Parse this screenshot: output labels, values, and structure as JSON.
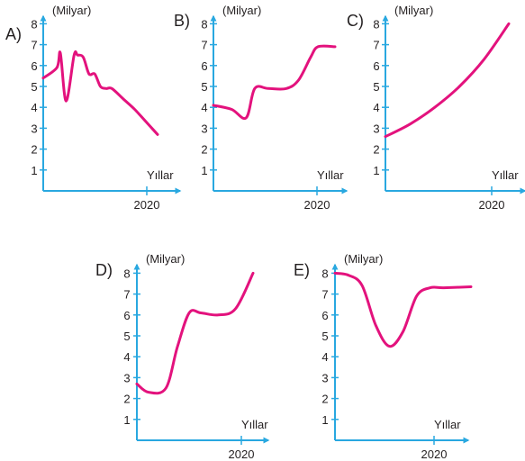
{
  "colors": {
    "axis": "#29a8e0",
    "curve": "#e3127d",
    "text": "#231f20"
  },
  "chart_data": [
    {
      "type": "line",
      "option": "A)",
      "unit_label": "(Milyar)",
      "xlabel": "Yıllar",
      "y_ticks": [
        "1",
        "2",
        "3",
        "4",
        "5",
        "6",
        "7",
        "8"
      ],
      "x_tick": "2020",
      "ylim": [
        0,
        8
      ],
      "series": [
        {
          "x": [
            0,
            0.12,
            0.15,
            0.2,
            0.27,
            0.3,
            0.35,
            0.4,
            0.45,
            0.5,
            0.55,
            0.6,
            0.7,
            0.8,
            0.9,
            1.0
          ],
          "y": [
            5.4,
            5.9,
            6.6,
            4.3,
            6.5,
            6.5,
            6.4,
            5.6,
            5.6,
            5.0,
            4.9,
            4.9,
            4.4,
            3.9,
            3.3,
            2.7
          ]
        }
      ]
    },
    {
      "type": "line",
      "option": "B)",
      "unit_label": "(Milyar)",
      "xlabel": "Yıllar",
      "y_ticks": [
        "1",
        "2",
        "3",
        "4",
        "5",
        "6",
        "7",
        "8"
      ],
      "x_tick": "2020",
      "ylim": [
        0,
        8
      ],
      "series": [
        {
          "x": [
            0,
            0.15,
            0.27,
            0.34,
            0.45,
            0.6,
            0.7,
            0.8,
            0.86,
            1.0
          ],
          "y": [
            4.1,
            3.9,
            3.5,
            4.9,
            4.9,
            4.9,
            5.3,
            6.4,
            6.9,
            6.9
          ]
        }
      ]
    },
    {
      "type": "line",
      "option": "C)",
      "unit_label": "(Milyar)",
      "xlabel": "Yıllar",
      "y_ticks": [
        "1",
        "2",
        "3",
        "4",
        "5",
        "6",
        "7",
        "8"
      ],
      "x_tick": "2020",
      "ylim": [
        0,
        8
      ],
      "series": [
        {
          "x": [
            0,
            0.2,
            0.4,
            0.6,
            0.8,
            1.0
          ],
          "y": [
            2.6,
            3.2,
            4.0,
            5.0,
            6.3,
            8.0
          ]
        }
      ]
    },
    {
      "type": "line",
      "option": "D)",
      "unit_label": "(Milyar)",
      "xlabel": "Yıllar",
      "y_ticks": [
        "1",
        "2",
        "3",
        "4",
        "5",
        "6",
        "7",
        "8"
      ],
      "x_tick": "2020",
      "ylim": [
        0,
        8
      ],
      "series": [
        {
          "x": [
            0,
            0.1,
            0.25,
            0.35,
            0.45,
            0.55,
            0.7,
            0.85,
            1.0
          ],
          "y": [
            2.7,
            2.3,
            2.5,
            4.5,
            6.1,
            6.1,
            6.0,
            6.3,
            8.0
          ]
        }
      ]
    },
    {
      "type": "line",
      "option": "E)",
      "unit_label": "(Milyar)",
      "xlabel": "Yıllar",
      "y_ticks": [
        "1",
        "2",
        "3",
        "4",
        "5",
        "6",
        "7",
        "8"
      ],
      "x_tick": "2020",
      "ylim": [
        0,
        8
      ],
      "series": [
        {
          "x": [
            0,
            0.1,
            0.2,
            0.3,
            0.4,
            0.5,
            0.6,
            0.7,
            0.8,
            1.0
          ],
          "y": [
            8.0,
            7.9,
            7.4,
            5.5,
            4.5,
            5.2,
            6.9,
            7.3,
            7.3,
            7.35
          ]
        }
      ]
    }
  ]
}
